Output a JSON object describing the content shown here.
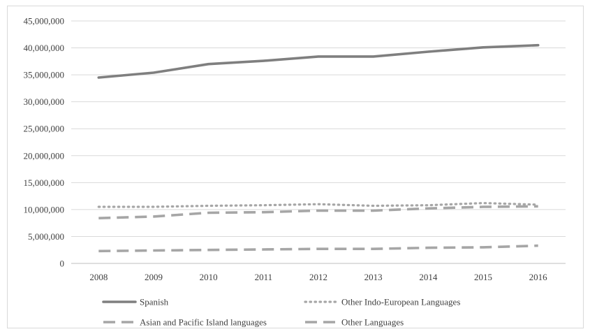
{
  "chart_data": {
    "type": "line",
    "title": "",
    "xlabel": "",
    "ylabel": "",
    "categories": [
      "2008",
      "2009",
      "2010",
      "2011",
      "2012",
      "2013",
      "2014",
      "2015",
      "2016"
    ],
    "ylim": [
      0,
      45000000
    ],
    "ytick_values": [
      0,
      5000000,
      10000000,
      15000000,
      20000000,
      25000000,
      30000000,
      35000000,
      40000000,
      45000000
    ],
    "ytick_labels": [
      "0",
      "5,000,000",
      "10,000,000",
      "15,000,000",
      "20,000,000",
      "25,000,000",
      "30,000,000",
      "35,000,000",
      "40,000,000",
      "45,000,000"
    ],
    "grid": true,
    "legend_position": "bottom",
    "series": [
      {
        "name": "Spanish",
        "style": "solid",
        "color": "#7f7f7f",
        "values": [
          34500000,
          35400000,
          37000000,
          37600000,
          38400000,
          38400000,
          39300000,
          40100000,
          40500000
        ]
      },
      {
        "name": "Other Indo-European Languages",
        "style": "dotted",
        "color": "#a6a6a6",
        "values": [
          10500000,
          10500000,
          10700000,
          10800000,
          11000000,
          10700000,
          10800000,
          11200000,
          10900000
        ]
      },
      {
        "name": "Asian and Pacific Island languages",
        "style": "dashed",
        "color": "#a6a6a6",
        "values": [
          8400000,
          8700000,
          9400000,
          9500000,
          9800000,
          9800000,
          10200000,
          10500000,
          10600000
        ]
      },
      {
        "name": "Other Languages",
        "style": "dashed",
        "color": "#a6a6a6",
        "values": [
          2300000,
          2400000,
          2500000,
          2600000,
          2700000,
          2700000,
          2900000,
          3000000,
          3300000
        ]
      }
    ]
  }
}
